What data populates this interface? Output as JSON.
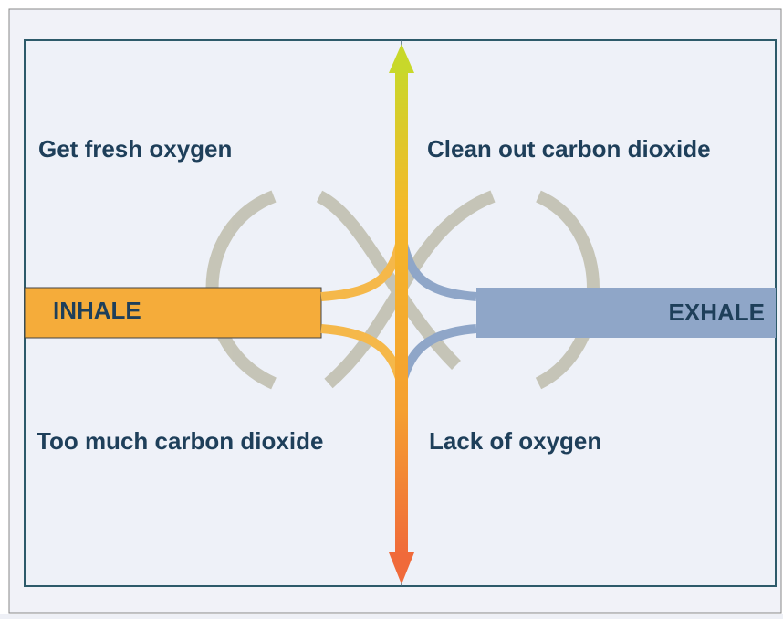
{
  "labels": {
    "top_left": "Get fresh oxygen",
    "top_right": "Clean out carbon dioxide",
    "bottom_left": "Too much carbon dioxide",
    "bottom_right": "Lack of oxygen",
    "inhale": "INHALE",
    "exhale": "EXHALE"
  }
}
